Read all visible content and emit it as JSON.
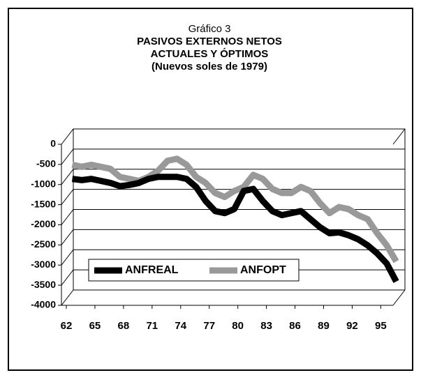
{
  "chart_data": {
    "type": "line",
    "title": [
      "Gráfico 3",
      "PASIVOS EXTERNOS NETOS",
      "ACTUALES Y ÓPTIMOS"
    ],
    "subtitle": "(Nuevos soles de 1979)",
    "x": [
      62,
      63,
      64,
      65,
      66,
      67,
      68,
      69,
      70,
      71,
      72,
      73,
      74,
      75,
      76,
      77,
      78,
      79,
      80,
      81,
      82,
      83,
      84,
      85,
      86,
      87,
      88,
      89,
      90,
      91,
      92,
      93,
      94,
      95,
      96
    ],
    "xlim": [
      62,
      96
    ],
    "xticks": [
      62,
      65,
      68,
      71,
      74,
      77,
      80,
      83,
      86,
      89,
      92,
      95
    ],
    "ylim": [
      -4000,
      0
    ],
    "yticks": [
      0,
      -500,
      -1000,
      -1500,
      -2000,
      -2500,
      -3000,
      -3500,
      -4000
    ],
    "grid": true,
    "legend": "bottom-left",
    "series": [
      {
        "name": "ANFREAL",
        "color": "#000000",
        "values": [
          -1050,
          -1080,
          -1050,
          -1100,
          -1150,
          -1230,
          -1200,
          -1150,
          -1050,
          -1000,
          -1000,
          -1000,
          -1050,
          -1250,
          -1600,
          -1850,
          -1900,
          -1800,
          -1350,
          -1300,
          -1600,
          -1850,
          -1950,
          -1900,
          -1850,
          -2050,
          -2250,
          -2400,
          -2380,
          -2450,
          -2550,
          -2700,
          -2900,
          -3150,
          -3600
        ]
      },
      {
        "name": "ANFOPT",
        "color": "#999999",
        "values": [
          -700,
          -750,
          -700,
          -750,
          -800,
          -1000,
          -1050,
          -1100,
          -1000,
          -850,
          -600,
          -550,
          -700,
          -1000,
          -1150,
          -1400,
          -1500,
          -1350,
          -1250,
          -950,
          -1050,
          -1300,
          -1400,
          -1400,
          -1250,
          -1350,
          -1650,
          -1900,
          -1750,
          -1800,
          -1950,
          -2050,
          -2400,
          -2700,
          -3100
        ]
      }
    ]
  }
}
